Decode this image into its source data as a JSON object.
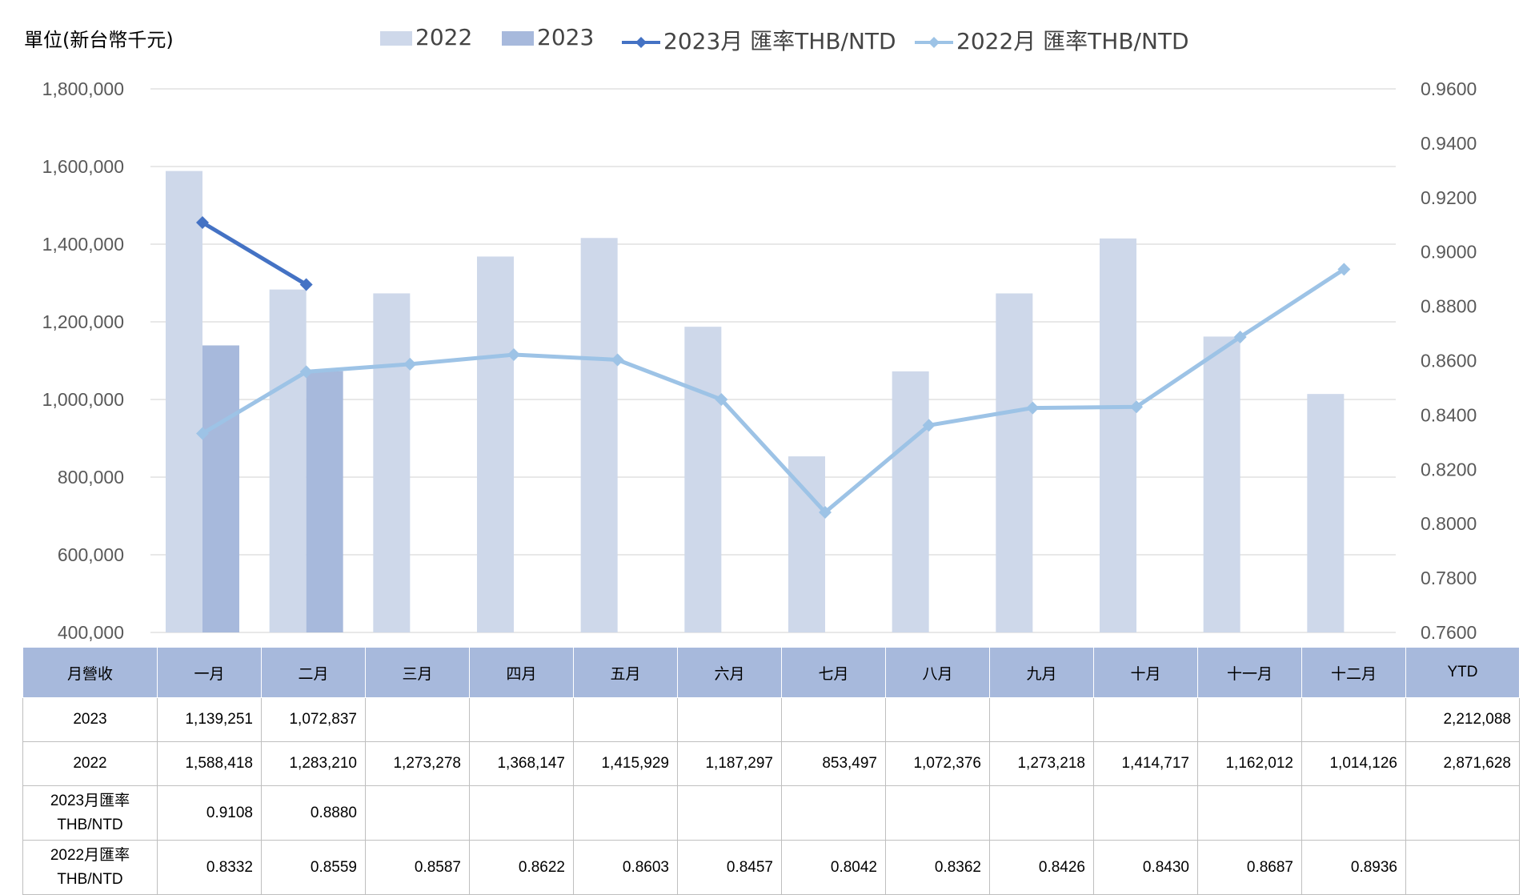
{
  "unit_label": "單位(新台幣千元)",
  "legend": [
    {
      "label": "2022",
      "kind": "bar",
      "color": "#ced8ea"
    },
    {
      "label": "2023",
      "kind": "bar",
      "color": "#a7b9dc"
    },
    {
      "label": "2023月 匯率THB/NTD",
      "kind": "line",
      "color": "#4472c4"
    },
    {
      "label": "2022月 匯率THB/NTD",
      "kind": "line",
      "color": "#9dc3e6"
    }
  ],
  "chart_data": {
    "type": "bar",
    "categories": [
      "一月",
      "二月",
      "三月",
      "四月",
      "五月",
      "六月",
      "七月",
      "八月",
      "九月",
      "十月",
      "十一月",
      "十二月"
    ],
    "series": [
      {
        "name": "2022",
        "type": "bar",
        "axis": "left",
        "color": "#ced8ea",
        "values": [
          1588418,
          1283210,
          1273278,
          1368147,
          1415929,
          1187297,
          853497,
          1072376,
          1273218,
          1414717,
          1162012,
          1014126
        ]
      },
      {
        "name": "2023",
        "type": "bar",
        "axis": "left",
        "color": "#a7b9dc",
        "values": [
          1139251,
          1072837,
          null,
          null,
          null,
          null,
          null,
          null,
          null,
          null,
          null,
          null
        ]
      },
      {
        "name": "2023月 匯率THB/NTD",
        "type": "line",
        "axis": "right",
        "color": "#4472c4",
        "values": [
          0.9108,
          0.888,
          null,
          null,
          null,
          null,
          null,
          null,
          null,
          null,
          null,
          null
        ]
      },
      {
        "name": "2022月 匯率THB/NTD",
        "type": "line",
        "axis": "right",
        "color": "#9dc3e6",
        "values": [
          0.8332,
          0.8559,
          0.8587,
          0.8622,
          0.8603,
          0.8457,
          0.8042,
          0.8362,
          0.8426,
          0.843,
          0.8687,
          0.8936
        ]
      }
    ],
    "y_left": {
      "min": 400000,
      "max": 1800000,
      "step": 200000,
      "ticks": [
        "400,000",
        "600,000",
        "800,000",
        "1,000,000",
        "1,200,000",
        "1,400,000",
        "1,600,000",
        "1,800,000"
      ]
    },
    "y_right": {
      "min": 0.76,
      "max": 0.96,
      "step": 0.02,
      "ticks": [
        "0.7600",
        "0.7800",
        "0.8000",
        "0.8200",
        "0.8400",
        "0.8600",
        "0.8800",
        "0.9000",
        "0.9200",
        "0.9400",
        "0.9600"
      ]
    },
    "grid": true,
    "legend_position": "top"
  },
  "table": {
    "header": [
      "月營收",
      "一月",
      "二月",
      "三月",
      "四月",
      "五月",
      "六月",
      "七月",
      "八月",
      "九月",
      "十月",
      "十一月",
      "十二月",
      "YTD"
    ],
    "rows": [
      {
        "label": "2023",
        "cells": [
          "1,139,251",
          "1,072,837",
          "",
          "",
          "",
          "",
          "",
          "",
          "",
          "",
          "",
          "",
          "2,212,088"
        ]
      },
      {
        "label": "2022",
        "cells": [
          "1,588,418",
          "1,283,210",
          "1,273,278",
          "1,368,147",
          "1,415,929",
          "1,187,297",
          "853,497",
          "1,072,376",
          "1,273,218",
          "1,414,717",
          "1,162,012",
          "1,014,126",
          "2,871,628"
        ]
      },
      {
        "label": "2023月匯率",
        "label2": "THB/NTD",
        "cells": [
          "0.9108",
          "0.8880",
          "",
          "",
          "",
          "",
          "",
          "",
          "",
          "",
          "",
          "",
          ""
        ]
      },
      {
        "label": "2022月匯率",
        "label2": "THB/NTD",
        "cells": [
          "0.8332",
          "0.8559",
          "0.8587",
          "0.8622",
          "0.8603",
          "0.8457",
          "0.8042",
          "0.8362",
          "0.8426",
          "0.8430",
          "0.8687",
          "0.8936",
          ""
        ]
      }
    ]
  }
}
